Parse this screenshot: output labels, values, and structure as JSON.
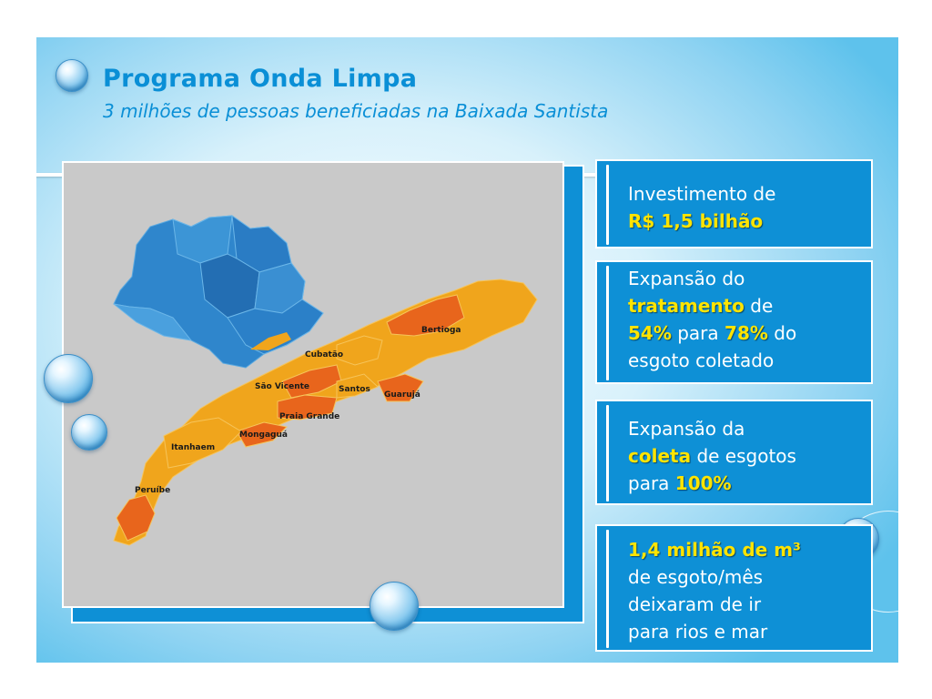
{
  "header": {
    "title": "Programa Onda Limpa",
    "subtitle": "3 milhões de pessoas beneficiadas na Baixada Santista"
  },
  "map": {
    "labels": {
      "bertioga": "Bertioga",
      "cubatao": "Cubatão",
      "sao_vicente": "São Vicente",
      "santos": "Santos",
      "guaruja": "Guarujá",
      "praia_grande": "Praia Grande",
      "mongagua": "Mongaguá",
      "itanhaem": "Itanhaem",
      "peruibe": "Peruíbe"
    },
    "colors": {
      "state": "#2f86cc",
      "coast_light": "#f0a51c",
      "coast_dark": "#e8651c"
    }
  },
  "panels": {
    "investimento": {
      "line1": "Investimento de",
      "value": "R$ 1,5 bilhão"
    },
    "tratamento": {
      "pre": "Expansão do",
      "keyword": "tratamento",
      "mid": "de",
      "from": "54%",
      "para": "para",
      "to": "78%",
      "do": "do",
      "post": "esgoto coletado"
    },
    "coleta": {
      "pre": "Expansão da",
      "keyword": "coleta",
      "mid": "de esgotos",
      "para": "para",
      "value": "100%"
    },
    "volume": {
      "value": "1,4 milhão de m³",
      "line2": "de esgoto/mês",
      "line3": "deixaram de ir",
      "line4": "para rios e mar"
    }
  },
  "colors": {
    "accent": "#0a8fd6",
    "panel_bg": "#0e90d6",
    "highlight": "#ffe400"
  }
}
